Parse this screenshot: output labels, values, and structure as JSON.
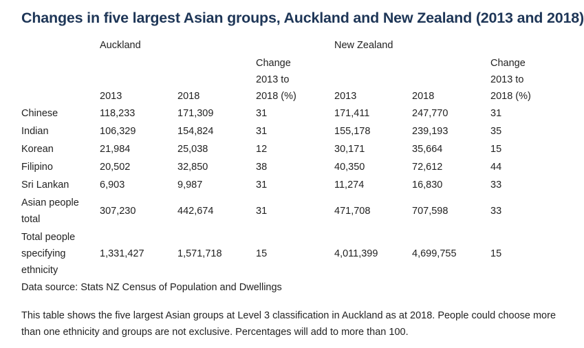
{
  "title": "Changes in five largest Asian groups, Auckland and New Zealand (2013 and 2018)",
  "table": {
    "group_headers": [
      "Auckland",
      "New Zealand"
    ],
    "column_headers": [
      "2013",
      "2018",
      "Change\n2013 to\n2018 (%)",
      "2013",
      "2018",
      "Change\n2013 to\n2018 (%)"
    ],
    "rows": [
      {
        "label": "Chinese",
        "values": [
          "118,233",
          "171,309",
          "31",
          "171,411",
          "247,770",
          "31"
        ]
      },
      {
        "label": "Indian",
        "values": [
          "106,329",
          "154,824",
          "31",
          "155,178",
          "239,193",
          "35"
        ]
      },
      {
        "label": "Korean",
        "values": [
          "21,984",
          "25,038",
          "12",
          "30,171",
          "35,664",
          "15"
        ]
      },
      {
        "label": "Filipino",
        "values": [
          "20,502",
          "32,850",
          "38",
          "40,350",
          "72,612",
          "44"
        ]
      },
      {
        "label": "Sri Lankan",
        "values": [
          "6,903",
          "9,987",
          "31",
          "11,274",
          "16,830",
          "33"
        ]
      },
      {
        "label": "Asian people\ntotal",
        "values": [
          "307,230",
          "442,674",
          "31",
          "471,708",
          "707,598",
          "33"
        ]
      },
      {
        "label": "Total people\nspecifying\nethnicity",
        "values": [
          "1,331,427",
          "1,571,718",
          "15",
          "4,011,399",
          "4,699,755",
          "15"
        ]
      }
    ]
  },
  "source": "Data source: Stats NZ Census of Population and Dwellings",
  "note": "This table shows the five largest Asian groups at Level 3 classification in Auckland as at 2018. People could choose more than one ethnicity and groups are not exclusive. Percentages will add to more than 100."
}
